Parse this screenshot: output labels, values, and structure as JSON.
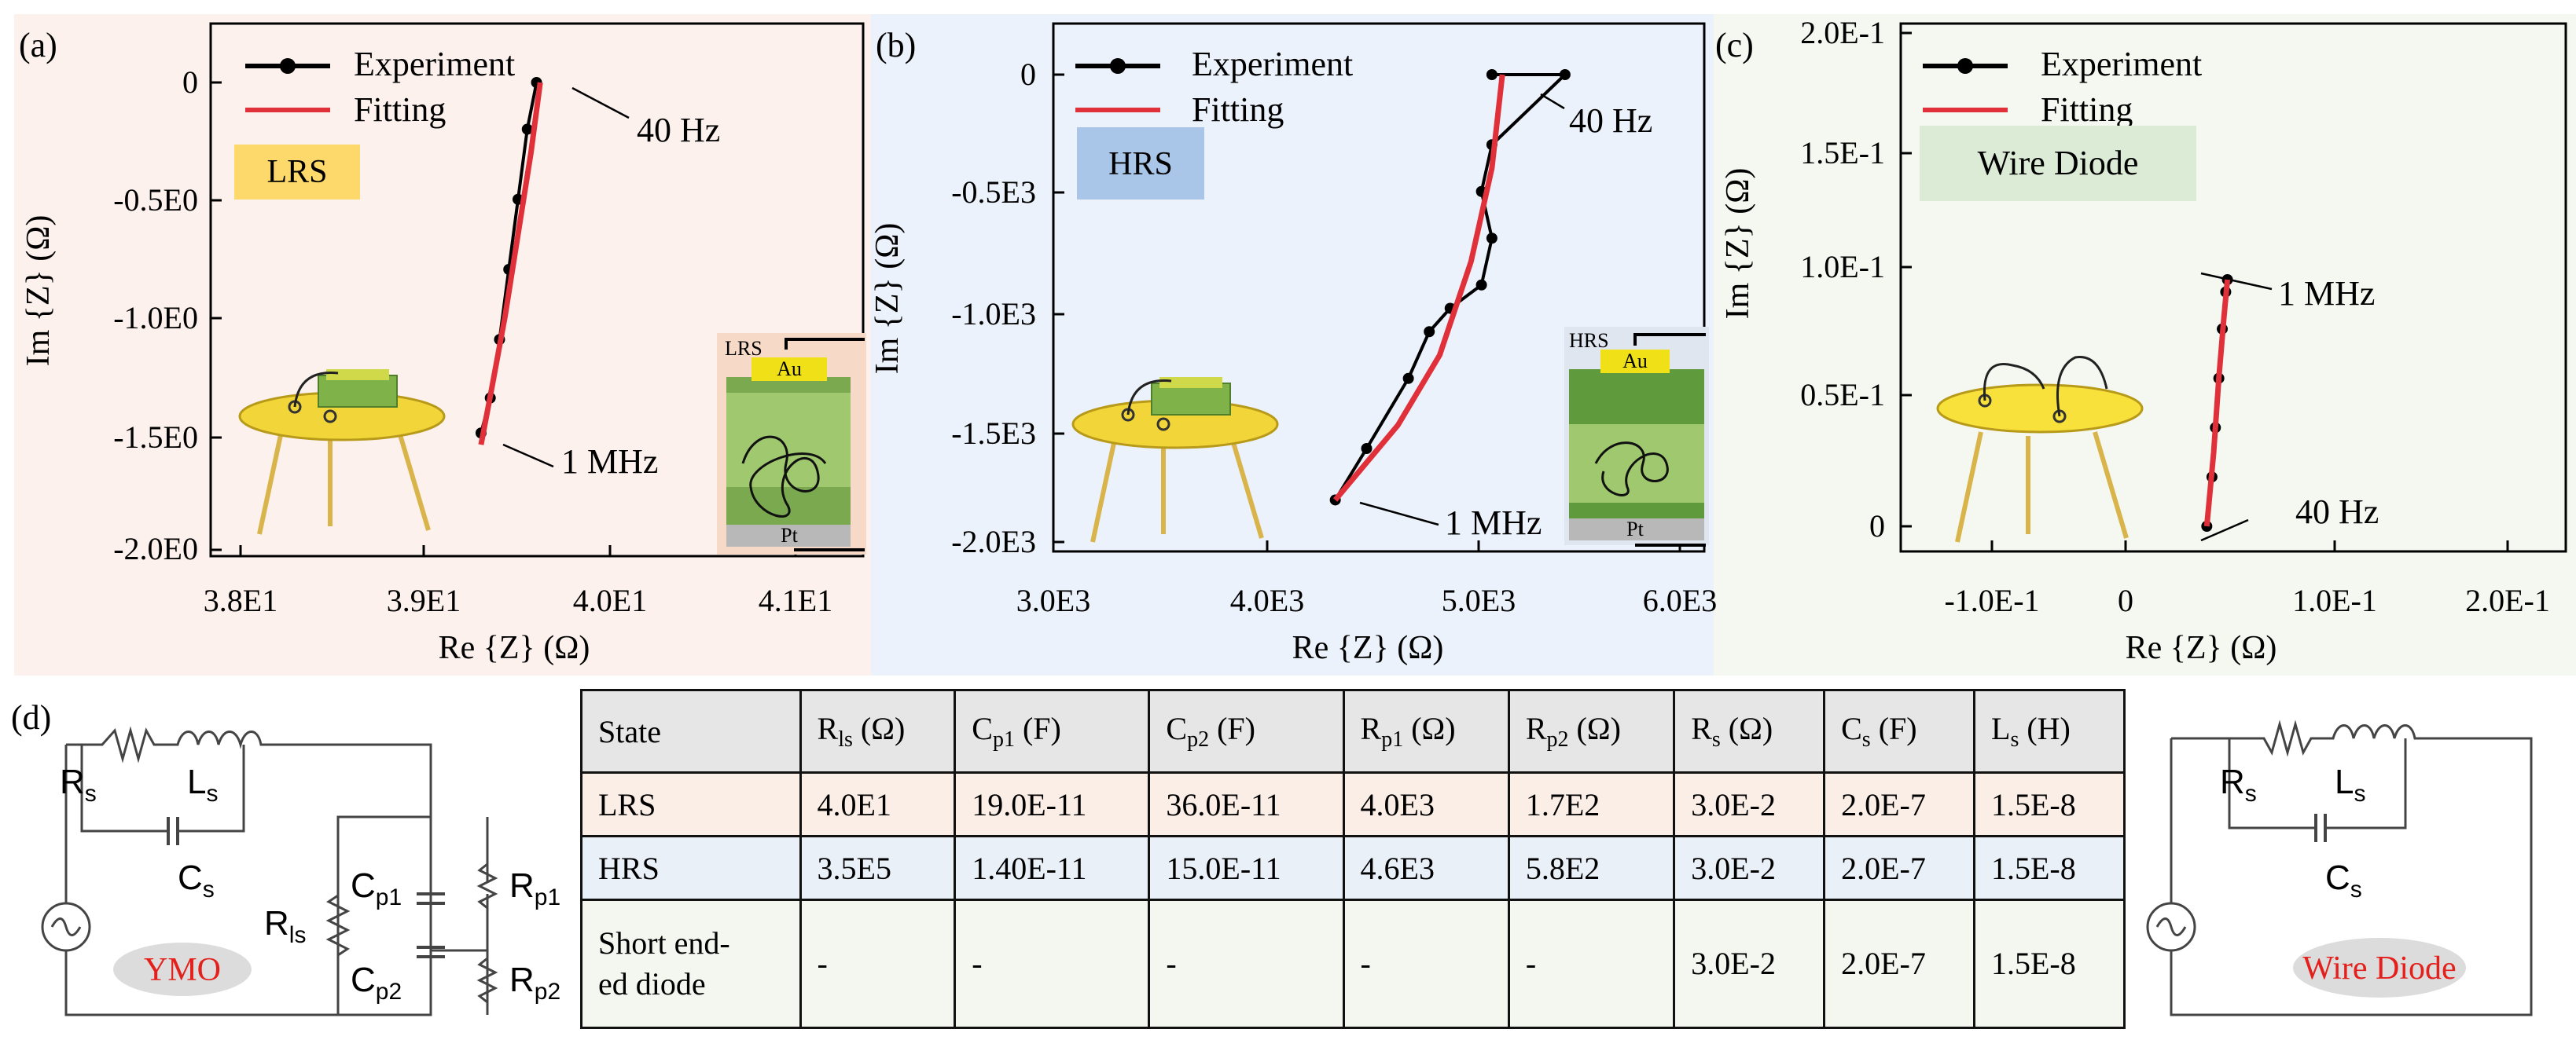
{
  "colors": {
    "panel_a_bg": "#fcf1ec",
    "panel_b_bg": "#ecf2fb",
    "panel_c_bg": "#f5f8f1",
    "experiment": "#000000",
    "fitting": "#e0303a",
    "lrs_badge": "#fcd96a",
    "hrs_badge": "#a9c6e8",
    "wire_badge": "#dcebd6",
    "label_red": "#e3201b"
  },
  "panels": [
    {
      "label": "(a)",
      "badge": "LRS",
      "legend": [
        "Experiment",
        "Fitting"
      ],
      "xlabel": "Re {Z} (Ω)",
      "ylabel": "Im {Z} (Ω)",
      "xticks": [
        "3.8E1",
        "3.9E1",
        "4.0E1",
        "4.1E1"
      ],
      "yticks": [
        "0",
        "-0.5E0",
        "-1.0E0",
        "-1.5E0",
        "-2.0E0"
      ],
      "annotations": [
        "40 Hz",
        "1 MHz"
      ],
      "inset": {
        "state": "LRS",
        "top": "Au",
        "bottom": "Pt"
      }
    },
    {
      "label": "(b)",
      "badge": "HRS",
      "legend": [
        "Experiment",
        "Fitting"
      ],
      "xlabel": "Re {Z} (Ω)",
      "ylabel": "Im {Z} (Ω)",
      "xticks": [
        "3.0E3",
        "4.0E3",
        "5.0E3",
        "6.0E3"
      ],
      "yticks": [
        "0",
        "-0.5E3",
        "-1.0E3",
        "-1.5E3",
        "-2.0E3"
      ],
      "annotations": [
        "40 Hz",
        "1 MHz"
      ],
      "inset": {
        "state": "HRS",
        "top": "Au",
        "bottom": "Pt"
      }
    },
    {
      "label": "(c)",
      "badge": "Wire Diode",
      "legend": [
        "Experiment",
        "Fitting"
      ],
      "xlabel": "Re {Z} (Ω)",
      "ylabel": "Im {Z} (Ω)",
      "xticks": [
        "-1.0E-1",
        "0",
        "1.0E-1",
        "2.0E-1"
      ],
      "yticks": [
        "2.0E-1",
        "1.5E-1",
        "1.0E-1",
        "0.5E-1",
        "0"
      ],
      "annotations": [
        "1 MHz",
        "40 Hz"
      ]
    }
  ],
  "chart_data": [
    {
      "type": "line",
      "xlim": [
        37.5,
        41.3
      ],
      "ylim": [
        -2.0,
        0.2
      ],
      "series": [
        {
          "name": "Experiment",
          "x": [
            39.6,
            39.55,
            39.5,
            39.45,
            39.4,
            39.35,
            39.3
          ],
          "y": [
            0.0,
            -0.2,
            -0.5,
            -0.8,
            -1.1,
            -1.35,
            -1.5
          ]
        },
        {
          "name": "Fitting",
          "x": [
            39.62,
            39.57,
            39.5,
            39.43,
            39.36,
            39.3
          ],
          "y": [
            0.0,
            -0.3,
            -0.65,
            -1.0,
            -1.3,
            -1.55
          ]
        }
      ]
    },
    {
      "type": "line",
      "xlim": [
        2800,
        6200
      ],
      "ylim": [
        -2.0,
        0.05
      ],
      "series": [
        {
          "name": "Experiment",
          "x": [
            5100,
            5450,
            5100,
            5050,
            5100,
            5050,
            4900,
            4800,
            4700,
            4500,
            4350
          ],
          "y": [
            0.0,
            0.0,
            -0.3,
            -0.5,
            -0.7,
            -0.9,
            -1.0,
            -1.1,
            -1.3,
            -1.6,
            -1.82
          ]
        },
        {
          "name": "Fitting",
          "x": [
            5150,
            5100,
            5000,
            4850,
            4650,
            4350
          ],
          "y": [
            0.0,
            -0.4,
            -0.8,
            -1.2,
            -1.5,
            -1.82
          ]
        }
      ]
    },
    {
      "type": "line",
      "xlim": [
        -0.12,
        0.21
      ],
      "ylim": [
        -0.02,
        0.2
      ],
      "series": [
        {
          "name": "Experiment",
          "x": [
            0.025,
            0.028,
            0.03,
            0.032,
            0.034,
            0.036,
            0.037
          ],
          "y": [
            0.0,
            0.02,
            0.04,
            0.06,
            0.08,
            0.095,
            0.1
          ]
        },
        {
          "name": "Fitting",
          "x": [
            0.025,
            0.029,
            0.032,
            0.035,
            0.037
          ],
          "y": [
            0.0,
            0.03,
            0.06,
            0.085,
            0.1
          ]
        }
      ]
    }
  ],
  "circuit_ymo": {
    "panel_label": "(d)",
    "components": [
      "R",
      "s",
      "L",
      "s",
      "C",
      "s",
      "R",
      "ls",
      "C",
      "p1",
      "C",
      "p2",
      "R",
      "p1",
      "R",
      "p2"
    ],
    "tag": "YMO"
  },
  "circuit_wire": {
    "components": [
      "R",
      "s",
      "L",
      "s",
      "C",
      "s"
    ],
    "tag": "Wire Diode"
  },
  "table": {
    "headers": [
      {
        "main": "State",
        "sub": "",
        "unit": ""
      },
      {
        "main": "R",
        "sub": "ls",
        "unit": " (Ω)"
      },
      {
        "main": "C",
        "sub": "p1",
        "unit": " (F)"
      },
      {
        "main": "C",
        "sub": "p2",
        "unit": " (F)"
      },
      {
        "main": "R",
        "sub": "p1",
        "unit": " (Ω)"
      },
      {
        "main": "R",
        "sub": "p2",
        "unit": " (Ω)"
      },
      {
        "main": "R",
        "sub": "s",
        "unit": " (Ω)"
      },
      {
        "main": "C",
        "sub": "s",
        "unit": " (F)"
      },
      {
        "main": "L",
        "sub": "s",
        "unit": " (H)"
      }
    ],
    "rows": [
      [
        "LRS",
        "4.0E1",
        "19.0E-11",
        "36.0E-11",
        "4.0E3",
        "1.7E2",
        "3.0E-2",
        "2.0E-7",
        "1.5E-8"
      ],
      [
        "HRS",
        "3.5E5",
        "1.40E-11",
        "15.0E-11",
        "4.6E3",
        "5.8E2",
        "3.0E-2",
        "2.0E-7",
        "1.5E-8"
      ],
      [
        "Short ended diode",
        "-",
        "-",
        "-",
        "-",
        "-",
        "3.0E-2",
        "2.0E-7",
        "1.5E-8"
      ]
    ],
    "row_display_0": [
      "Short end-",
      "ed diode"
    ]
  }
}
